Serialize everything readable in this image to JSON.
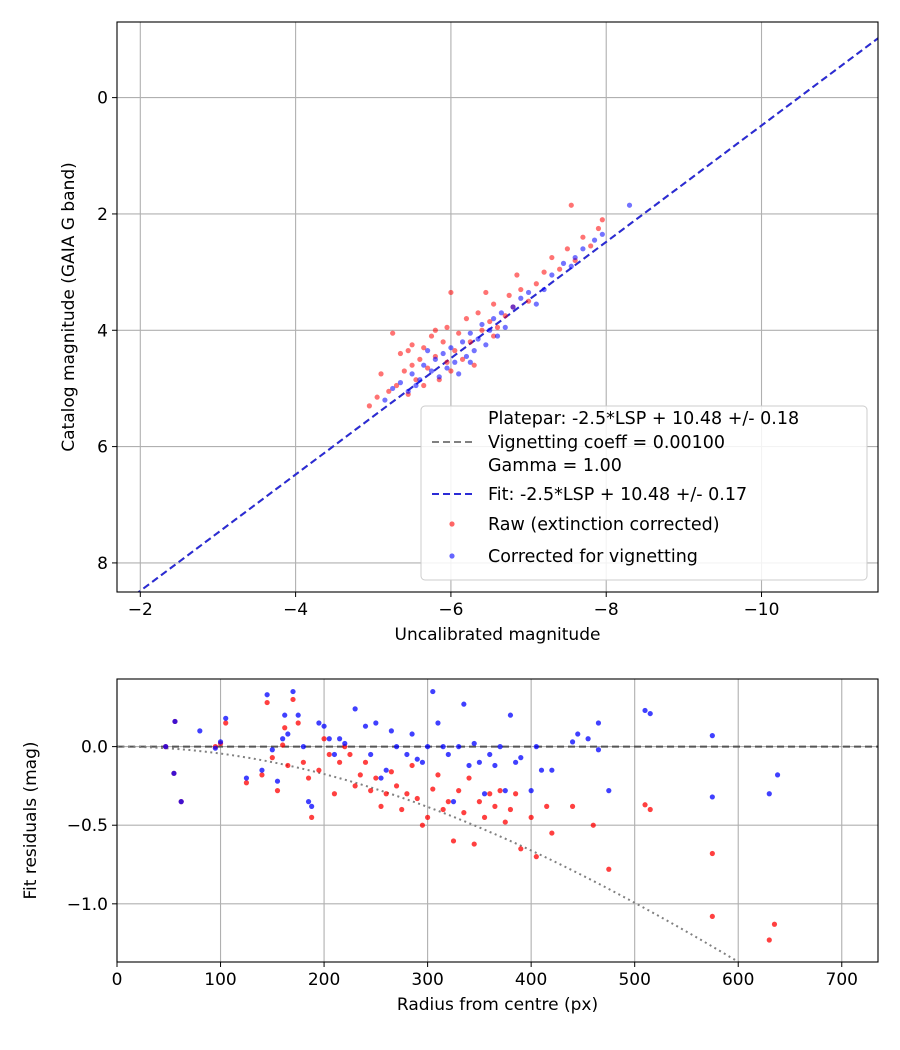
{
  "chart_data": [
    {
      "type": "scatter",
      "xlabel": "Uncalibrated magnitude",
      "ylabel": "Catalog magnitude (GAIA G band)",
      "xlim": [
        -1.7,
        -11.5
      ],
      "ylim": [
        8.5,
        -1.3
      ],
      "x_inverted": true,
      "y_inverted": true,
      "grid": true,
      "xticks": [
        -2,
        -4,
        -6,
        -8,
        -10
      ],
      "xtick_labels": [
        "−2",
        "−4",
        "−6",
        "−8",
        "−10"
      ],
      "yticks": [
        0,
        2,
        4,
        6,
        8
      ],
      "ytick_labels": [
        "0",
        "2",
        "4",
        "6",
        "8"
      ],
      "legend_position": "lower-right",
      "legend": [
        {
          "label": "Platepar: -2.5*LSP + 10.48 +/- 0.18",
          "style": "none"
        },
        {
          "label": "Vignetting coeff = 0.00100",
          "style": "dashed",
          "color": "#808080"
        },
        {
          "label": "Gamma = 1.00",
          "style": "none"
        },
        {
          "label": "Fit: -2.5*LSP + 10.48 +/- 0.17",
          "style": "dashed",
          "color": "#2b2bd6"
        },
        {
          "label": "Raw (extinction corrected)",
          "style": "point",
          "color": "#ff0000"
        },
        {
          "label": "Corrected for vignetting",
          "style": "point",
          "color": "#0000ff"
        }
      ],
      "lines": [
        {
          "name": "Platepar",
          "slope": 1,
          "intercept": 10.48,
          "color": "#808080",
          "style": "dashed"
        },
        {
          "name": "Fit",
          "slope": 1,
          "intercept": 10.48,
          "color": "#2b2bd6",
          "style": "dashed"
        }
      ],
      "series": [
        {
          "name": "Raw (extinction corrected)",
          "color": "#ff0000",
          "points": [
            [
              -4.95,
              5.3
            ],
            [
              -5.05,
              5.15
            ],
            [
              -5.1,
              4.75
            ],
            [
              -5.2,
              5.05
            ],
            [
              -5.25,
              4.05
            ],
            [
              -5.3,
              4.95
            ],
            [
              -5.35,
              4.4
            ],
            [
              -5.4,
              4.7
            ],
            [
              -5.45,
              5.1
            ],
            [
              -5.5,
              4.6
            ],
            [
              -5.5,
              4.25
            ],
            [
              -5.55,
              4.85
            ],
            [
              -5.6,
              4.5
            ],
            [
              -5.65,
              4.3
            ],
            [
              -5.7,
              4.65
            ],
            [
              -5.75,
              4.1
            ],
            [
              -5.8,
              4.45
            ],
            [
              -5.85,
              4.85
            ],
            [
              -5.9,
              4.2
            ],
            [
              -5.95,
              4.55
            ],
            [
              -5.95,
              3.95
            ],
            [
              -6.0,
              4.7
            ],
            [
              -6.0,
              3.35
            ],
            [
              -6.05,
              4.35
            ],
            [
              -6.1,
              4.05
            ],
            [
              -6.15,
              4.5
            ],
            [
              -6.2,
              3.8
            ],
            [
              -6.25,
              4.2
            ],
            [
              -6.3,
              4.6
            ],
            [
              -6.35,
              3.7
            ],
            [
              -6.4,
              4.0
            ],
            [
              -6.45,
              3.35
            ],
            [
              -6.5,
              3.85
            ],
            [
              -6.55,
              3.55
            ],
            [
              -6.6,
              3.95
            ],
            [
              -6.7,
              3.75
            ],
            [
              -6.75,
              3.4
            ],
            [
              -6.8,
              3.6
            ],
            [
              -6.85,
              3.05
            ],
            [
              -6.9,
              3.3
            ],
            [
              -7.0,
              3.5
            ],
            [
              -7.1,
              3.2
            ],
            [
              -7.2,
              3.0
            ],
            [
              -7.3,
              2.75
            ],
            [
              -7.4,
              2.95
            ],
            [
              -7.5,
              2.6
            ],
            [
              -7.55,
              1.85
            ],
            [
              -7.6,
              2.8
            ],
            [
              -7.7,
              2.4
            ],
            [
              -7.8,
              2.55
            ],
            [
              -7.9,
              2.25
            ],
            [
              -7.95,
              2.1
            ],
            [
              -5.65,
              4.95
            ],
            [
              -5.45,
              4.35
            ],
            [
              -6.55,
              4.1
            ],
            [
              -5.8,
              4.0
            ]
          ]
        },
        {
          "name": "Corrected for vignetting",
          "color": "#0000ff",
          "points": [
            [
              -5.15,
              5.2
            ],
            [
              -5.25,
              5.0
            ],
            [
              -5.35,
              4.9
            ],
            [
              -5.45,
              5.05
            ],
            [
              -5.5,
              4.75
            ],
            [
              -5.6,
              4.85
            ],
            [
              -5.65,
              4.6
            ],
            [
              -5.75,
              4.7
            ],
            [
              -5.8,
              4.5
            ],
            [
              -5.85,
              4.8
            ],
            [
              -5.9,
              4.4
            ],
            [
              -5.95,
              4.65
            ],
            [
              -6.0,
              4.3
            ],
            [
              -6.05,
              4.55
            ],
            [
              -6.1,
              4.75
            ],
            [
              -6.15,
              4.2
            ],
            [
              -6.2,
              4.45
            ],
            [
              -6.25,
              4.05
            ],
            [
              -6.3,
              4.35
            ],
            [
              -6.35,
              4.15
            ],
            [
              -6.4,
              3.9
            ],
            [
              -6.45,
              4.25
            ],
            [
              -6.5,
              4.0
            ],
            [
              -6.55,
              3.8
            ],
            [
              -6.6,
              4.1
            ],
            [
              -6.65,
              3.7
            ],
            [
              -6.7,
              3.95
            ],
            [
              -6.8,
              3.6
            ],
            [
              -6.9,
              3.45
            ],
            [
              -7.0,
              3.35
            ],
            [
              -7.1,
              3.55
            ],
            [
              -7.2,
              3.3
            ],
            [
              -7.3,
              3.05
            ],
            [
              -7.45,
              2.85
            ],
            [
              -7.6,
              2.75
            ],
            [
              -7.7,
              2.6
            ],
            [
              -7.85,
              2.45
            ],
            [
              -7.95,
              2.35
            ],
            [
              -8.3,
              1.85
            ],
            [
              -7.55,
              2.9
            ],
            [
              -5.55,
              4.95
            ],
            [
              -6.25,
              4.55
            ],
            [
              -5.7,
              4.35
            ]
          ]
        }
      ]
    },
    {
      "type": "scatter",
      "xlabel": "Radius from centre (px)",
      "ylabel": "Fit residuals (mag)",
      "xlim": [
        0,
        735
      ],
      "ylim": [
        -1.37,
        0.43
      ],
      "grid": true,
      "xticks": [
        0,
        100,
        200,
        300,
        400,
        500,
        600,
        700
      ],
      "xtick_labels": [
        "0",
        "100",
        "200",
        "300",
        "400",
        "500",
        "600",
        "700"
      ],
      "yticks": [
        0.0,
        -0.5,
        -1.0
      ],
      "ytick_labels": [
        "0.0",
        "−0.5",
        "−1.0"
      ],
      "lines": [
        {
          "name": "zero",
          "value": 0,
          "color": "#555555",
          "style": "dashed"
        },
        {
          "name": "vignetting model",
          "coefficient": 0.001,
          "color": "#808080",
          "style": "dotted"
        }
      ],
      "series": [
        {
          "name": "Raw (extinction corrected)",
          "color": "#ff0000",
          "points": [
            [
              47,
              0.0
            ],
            [
              55,
              -0.17
            ],
            [
              56,
              0.16
            ],
            [
              62,
              -0.35
            ],
            [
              95,
              0.0
            ],
            [
              100,
              0.02
            ],
            [
              105,
              0.15
            ],
            [
              125,
              -0.23
            ],
            [
              140,
              -0.18
            ],
            [
              145,
              0.28
            ],
            [
              150,
              -0.07
            ],
            [
              155,
              -0.28
            ],
            [
              160,
              0.01
            ],
            [
              162,
              0.12
            ],
            [
              165,
              -0.12
            ],
            [
              170,
              0.3
            ],
            [
              175,
              0.15
            ],
            [
              180,
              -0.1
            ],
            [
              185,
              -0.2
            ],
            [
              188,
              -0.45
            ],
            [
              195,
              -0.15
            ],
            [
              200,
              0.05
            ],
            [
              205,
              -0.05
            ],
            [
              210,
              -0.3
            ],
            [
              215,
              -0.1
            ],
            [
              220,
              0.0
            ],
            [
              225,
              -0.05
            ],
            [
              230,
              -0.25
            ],
            [
              235,
              -0.18
            ],
            [
              240,
              -0.1
            ],
            [
              245,
              -0.28
            ],
            [
              250,
              -0.2
            ],
            [
              255,
              -0.38
            ],
            [
              260,
              -0.3
            ],
            [
              265,
              -0.16
            ],
            [
              270,
              -0.25
            ],
            [
              275,
              -0.4
            ],
            [
              280,
              -0.3
            ],
            [
              285,
              -0.12
            ],
            [
              290,
              -0.33
            ],
            [
              295,
              -0.5
            ],
            [
              300,
              -0.45
            ],
            [
              305,
              -0.27
            ],
            [
              310,
              -0.18
            ],
            [
              315,
              -0.4
            ],
            [
              320,
              -0.35
            ],
            [
              325,
              -0.6
            ],
            [
              330,
              -0.28
            ],
            [
              335,
              -0.42
            ],
            [
              340,
              -0.2
            ],
            [
              345,
              -0.62
            ],
            [
              350,
              -0.35
            ],
            [
              355,
              -0.45
            ],
            [
              360,
              -0.3
            ],
            [
              365,
              -0.38
            ],
            [
              370,
              -0.28
            ],
            [
              375,
              -0.48
            ],
            [
              380,
              -0.4
            ],
            [
              385,
              -0.3
            ],
            [
              390,
              -0.65
            ],
            [
              400,
              -0.45
            ],
            [
              405,
              -0.7
            ],
            [
              415,
              -0.38
            ],
            [
              420,
              -0.55
            ],
            [
              440,
              -0.38
            ],
            [
              460,
              -0.5
            ],
            [
              475,
              -0.78
            ],
            [
              510,
              -0.37
            ],
            [
              515,
              -0.4
            ],
            [
              575,
              -0.68
            ],
            [
              575,
              -1.08
            ],
            [
              630,
              -1.23
            ],
            [
              635,
              -1.13
            ]
          ]
        },
        {
          "name": "Corrected for vignetting",
          "color": "#0000ff",
          "points": [
            [
              47,
              0.0
            ],
            [
              55,
              -0.17
            ],
            [
              56,
              0.16
            ],
            [
              62,
              -0.35
            ],
            [
              80,
              0.1
            ],
            [
              95,
              -0.01
            ],
            [
              100,
              0.03
            ],
            [
              105,
              0.18
            ],
            [
              125,
              -0.2
            ],
            [
              140,
              -0.15
            ],
            [
              145,
              0.33
            ],
            [
              150,
              -0.02
            ],
            [
              155,
              -0.22
            ],
            [
              160,
              0.05
            ],
            [
              162,
              0.2
            ],
            [
              165,
              0.08
            ],
            [
              170,
              0.35
            ],
            [
              175,
              0.2
            ],
            [
              180,
              0.0
            ],
            [
              185,
              -0.35
            ],
            [
              188,
              -0.38
            ],
            [
              195,
              0.15
            ],
            [
              200,
              0.13
            ],
            [
              205,
              0.05
            ],
            [
              210,
              -0.05
            ],
            [
              215,
              0.05
            ],
            [
              220,
              0.02
            ],
            [
              230,
              0.24
            ],
            [
              240,
              0.13
            ],
            [
              245,
              -0.05
            ],
            [
              250,
              0.15
            ],
            [
              255,
              -0.2
            ],
            [
              260,
              -0.15
            ],
            [
              265,
              0.1
            ],
            [
              270,
              0.0
            ],
            [
              280,
              -0.05
            ],
            [
              285,
              0.08
            ],
            [
              290,
              -0.08
            ],
            [
              295,
              -0.1
            ],
            [
              300,
              0.0
            ],
            [
              305,
              0.35
            ],
            [
              310,
              0.15
            ],
            [
              315,
              0.0
            ],
            [
              320,
              -0.05
            ],
            [
              325,
              -0.35
            ],
            [
              330,
              0.0
            ],
            [
              335,
              0.27
            ],
            [
              340,
              -0.12
            ],
            [
              345,
              0.02
            ],
            [
              350,
              -0.1
            ],
            [
              355,
              -0.3
            ],
            [
              360,
              -0.05
            ],
            [
              365,
              -0.12
            ],
            [
              370,
              0.0
            ],
            [
              375,
              -0.28
            ],
            [
              380,
              0.2
            ],
            [
              385,
              -0.1
            ],
            [
              390,
              -0.07
            ],
            [
              400,
              -0.28
            ],
            [
              405,
              0.0
            ],
            [
              410,
              -0.15
            ],
            [
              420,
              -0.15
            ],
            [
              440,
              0.03
            ],
            [
              445,
              0.08
            ],
            [
              455,
              0.05
            ],
            [
              465,
              -0.02
            ],
            [
              465,
              0.15
            ],
            [
              475,
              -0.28
            ],
            [
              510,
              0.23
            ],
            [
              515,
              0.21
            ],
            [
              575,
              0.07
            ],
            [
              575,
              -0.32
            ],
            [
              630,
              -0.3
            ],
            [
              638,
              -0.18
            ]
          ]
        }
      ]
    }
  ]
}
